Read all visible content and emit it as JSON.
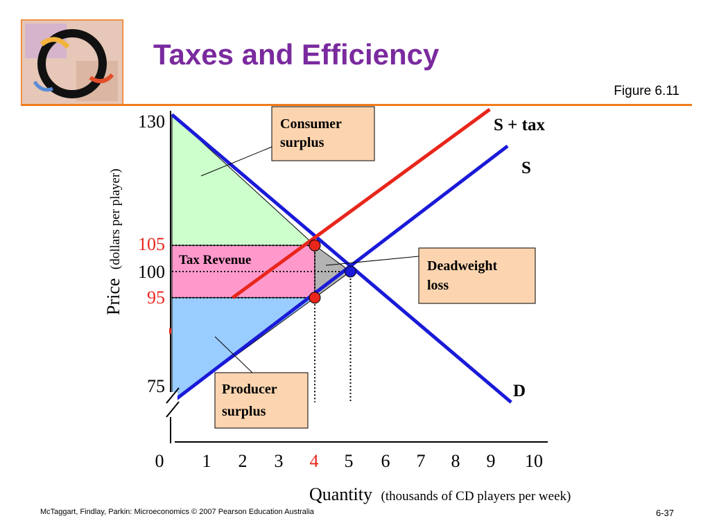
{
  "slide": {
    "title": "Taxes and Efficiency",
    "figure_ref": "Figure 6.11",
    "footer_left": "McTaggart, Findlay, Parkin: Microeconomics © 2007 Pearson Education Australia",
    "footer_right": "6-37",
    "logo_icon": "decorative-circle-logo-icon",
    "accent_color": "#f07c1c",
    "title_color": "#7a2a9e"
  },
  "chart_data": {
    "type": "line",
    "title": "",
    "xlabel": "Quantity",
    "xlabel_note": "(thousands of CD players per week)",
    "ylabel": "Price",
    "ylabel_note": "(dollars per player)",
    "xlim": [
      0,
      10
    ],
    "ylim": [
      75,
      130
    ],
    "x_ticks": [
      "0",
      "1",
      "2",
      "3",
      "4",
      "5",
      "6",
      "7",
      "8",
      "9",
      "10"
    ],
    "x_tick_highlight": "4",
    "y_ticks": [
      {
        "value": 130,
        "label": "130",
        "color": "#000000"
      },
      {
        "value": 105,
        "label": "105",
        "color": "#e8261b"
      },
      {
        "value": 100,
        "label": "100",
        "color": "#000000"
      },
      {
        "value": 95,
        "label": "95",
        "color": "#e8261b"
      },
      {
        "value": 75,
        "label": "75",
        "color": "#000000"
      }
    ],
    "axis_break": true,
    "series": [
      {
        "name": "D",
        "color": "#1a1ad8",
        "points": [
          [
            0,
            130
          ],
          [
            9.5,
            75
          ]
        ]
      },
      {
        "name": "S",
        "color": "#1a1ad8",
        "points": [
          [
            0,
            75
          ],
          [
            9.4,
            124
          ]
        ]
      },
      {
        "name": "S + tax",
        "color": "#e8261b",
        "points": [
          [
            1.7,
            95
          ],
          [
            8.9,
            131
          ]
        ]
      }
    ],
    "regions": [
      {
        "label": "Consumer surplus",
        "color": "#ccffcc",
        "points": [
          [
            0,
            130
          ],
          [
            0,
            105
          ],
          [
            4,
            105
          ]
        ]
      },
      {
        "label": "Tax Revenue",
        "color": "#ff99cc",
        "points": [
          [
            0,
            105
          ],
          [
            4,
            105
          ],
          [
            4,
            95
          ],
          [
            0,
            95
          ]
        ]
      },
      {
        "label": "Deadweight loss",
        "color": "#b3b3b3",
        "points": [
          [
            4,
            105
          ],
          [
            5,
            100
          ],
          [
            4,
            95
          ]
        ]
      },
      {
        "label": "Producer surplus",
        "color": "#99ccff",
        "points": [
          [
            0,
            95
          ],
          [
            4,
            95
          ],
          [
            0,
            75
          ]
        ]
      }
    ],
    "points": [
      {
        "x": 4,
        "y": 105,
        "color": "#e8261b"
      },
      {
        "x": 4,
        "y": 95,
        "color": "#e8261b"
      },
      {
        "x": 5,
        "y": 100,
        "color": "#1a1ad8"
      }
    ],
    "guides": [
      {
        "from": [
          0,
          105
        ],
        "to": [
          4,
          105
        ]
      },
      {
        "from": [
          0,
          100
        ],
        "to": [
          5,
          100
        ]
      },
      {
        "from": [
          0,
          95
        ],
        "to": [
          4,
          95
        ]
      },
      {
        "from": [
          4,
          105
        ],
        "to": [
          4,
          75
        ]
      },
      {
        "from": [
          5,
          100
        ],
        "to": [
          5,
          75
        ]
      }
    ],
    "callouts": [
      {
        "lines": [
          "Consumer",
          "surplus"
        ]
      },
      {
        "lines": [
          "Deadweight",
          "loss"
        ]
      },
      {
        "lines": [
          "Producer",
          "surplus"
        ]
      }
    ],
    "box_color": "#fcd5b0"
  }
}
